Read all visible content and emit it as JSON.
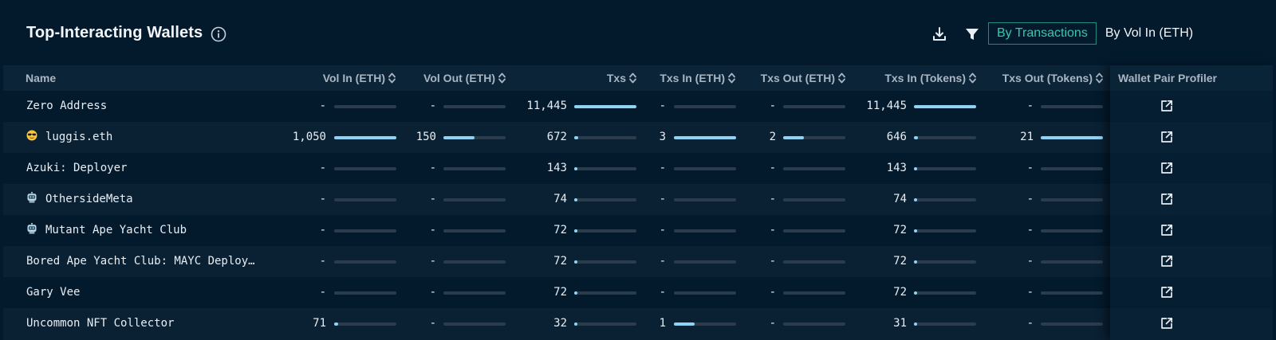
{
  "header": {
    "title": "Top-Interacting Wallets",
    "toggle": {
      "active": "By Transactions",
      "inactive": "By Vol In (ETH)"
    }
  },
  "columns": {
    "name": "Name",
    "vol_in": "Vol In (ETH)",
    "vol_out": "Vol Out (ETH)",
    "txs": "Txs",
    "txs_in_eth": "Txs In (ETH)",
    "txs_out_eth": "Txs Out (ETH)",
    "txs_in_tokens": "Txs In (Tokens)",
    "txs_out_tokens": "Txs Out (Tokens)",
    "profiler": "Wallet Pair Profiler"
  },
  "rows": [
    {
      "name": "Zero Address",
      "icon": "",
      "vol_in": "-",
      "vol_in_frac": 0,
      "vol_out": "-",
      "vol_out_frac": 0,
      "txs": "11,445",
      "txs_frac": 1,
      "txs_in_eth": "-",
      "txs_in_eth_frac": 0,
      "txs_out_eth": "-",
      "txs_out_eth_frac": 0,
      "txs_in_tokens": "11,445",
      "txs_in_tokens_frac": 1,
      "txs_out_tokens": "-",
      "txs_out_tokens_frac": 0
    },
    {
      "name": "luggis.eth",
      "icon": "sunglasses-emoji-icon",
      "vol_in": "1,050",
      "vol_in_frac": 1,
      "vol_out": "150",
      "vol_out_frac": 0.5,
      "txs": "672",
      "txs_frac": 0.06,
      "txs_in_eth": "3",
      "txs_in_eth_frac": 1,
      "txs_out_eth": "2",
      "txs_out_eth_frac": 0.33,
      "txs_in_tokens": "646",
      "txs_in_tokens_frac": 0.06,
      "txs_out_tokens": "21",
      "txs_out_tokens_frac": 1
    },
    {
      "name": "Azuki: Deployer",
      "icon": "",
      "vol_in": "-",
      "vol_in_frac": 0,
      "vol_out": "-",
      "vol_out_frac": 0,
      "txs": "143",
      "txs_frac": 0.013,
      "txs_in_eth": "-",
      "txs_in_eth_frac": 0,
      "txs_out_eth": "-",
      "txs_out_eth_frac": 0,
      "txs_in_tokens": "143",
      "txs_in_tokens_frac": 0.013,
      "txs_out_tokens": "-",
      "txs_out_tokens_frac": 0
    },
    {
      "name": "OthersideMeta",
      "icon": "robot-emoji-icon",
      "vol_in": "-",
      "vol_in_frac": 0,
      "vol_out": "-",
      "vol_out_frac": 0,
      "txs": "74",
      "txs_frac": 0.007,
      "txs_in_eth": "-",
      "txs_in_eth_frac": 0,
      "txs_out_eth": "-",
      "txs_out_eth_frac": 0,
      "txs_in_tokens": "74",
      "txs_in_tokens_frac": 0.007,
      "txs_out_tokens": "-",
      "txs_out_tokens_frac": 0
    },
    {
      "name": "Mutant Ape Yacht Club",
      "icon": "robot-emoji-icon",
      "vol_in": "-",
      "vol_in_frac": 0,
      "vol_out": "-",
      "vol_out_frac": 0,
      "txs": "72",
      "txs_frac": 0.006,
      "txs_in_eth": "-",
      "txs_in_eth_frac": 0,
      "txs_out_eth": "-",
      "txs_out_eth_frac": 0,
      "txs_in_tokens": "72",
      "txs_in_tokens_frac": 0.006,
      "txs_out_tokens": "-",
      "txs_out_tokens_frac": 0
    },
    {
      "name": "Bored Ape Yacht Club: MAYC Deploy…",
      "icon": "",
      "vol_in": "-",
      "vol_in_frac": 0,
      "vol_out": "-",
      "vol_out_frac": 0,
      "txs": "72",
      "txs_frac": 0.006,
      "txs_in_eth": "-",
      "txs_in_eth_frac": 0,
      "txs_out_eth": "-",
      "txs_out_eth_frac": 0,
      "txs_in_tokens": "72",
      "txs_in_tokens_frac": 0.006,
      "txs_out_tokens": "-",
      "txs_out_tokens_frac": 0
    },
    {
      "name": "Gary Vee",
      "icon": "",
      "vol_in": "-",
      "vol_in_frac": 0,
      "vol_out": "-",
      "vol_out_frac": 0,
      "txs": "72",
      "txs_frac": 0.006,
      "txs_in_eth": "-",
      "txs_in_eth_frac": 0,
      "txs_out_eth": "-",
      "txs_out_eth_frac": 0,
      "txs_in_tokens": "72",
      "txs_in_tokens_frac": 0.006,
      "txs_out_tokens": "-",
      "txs_out_tokens_frac": 0
    },
    {
      "name": "Uncommon NFT Collector",
      "icon": "",
      "vol_in": "71",
      "vol_in_frac": 0.068,
      "vol_out": "-",
      "vol_out_frac": 0,
      "txs": "32",
      "txs_frac": 0.003,
      "txs_in_eth": "1",
      "txs_in_eth_frac": 0.33,
      "txs_out_eth": "-",
      "txs_out_eth_frac": 0,
      "txs_in_tokens": "31",
      "txs_in_tokens_frac": 0.003,
      "txs_out_tokens": "-",
      "txs_out_tokens_frac": 0
    }
  ]
}
